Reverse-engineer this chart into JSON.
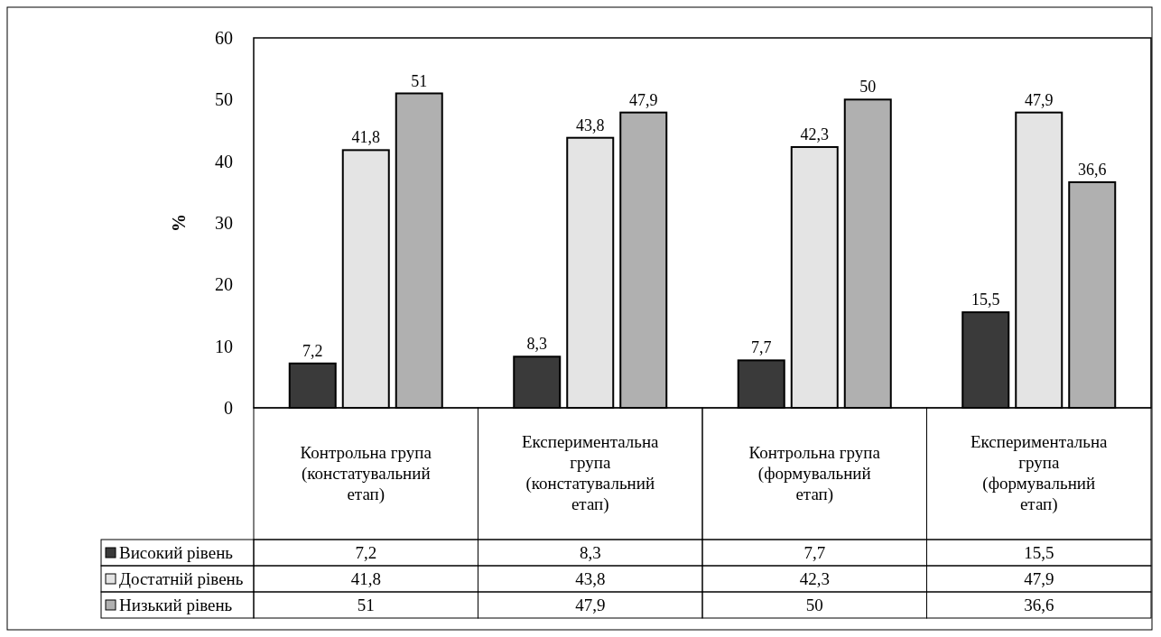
{
  "chart_data": {
    "type": "bar",
    "ylabel": "%",
    "categories": [
      "Контрольна група (констатувальний етап)",
      "Експериментальна група (констатувальний етап)",
      "Контрольна група (формувальний етап)",
      "Експериментальна група (формувальний етап)"
    ],
    "series": [
      {
        "name": "Високий рівень",
        "color": "#3a3a3a",
        "values": [
          7.2,
          8.3,
          7.7,
          15.5
        ],
        "value_labels": [
          "7,2",
          "8,3",
          "7,7",
          "15,5"
        ]
      },
      {
        "name": "Достатній рівень",
        "color": "#e4e4e4",
        "values": [
          41.8,
          43.8,
          42.3,
          47.9
        ],
        "value_labels": [
          "41,8",
          "43,8",
          "42,3",
          "47,9"
        ]
      },
      {
        "name": "Низький рівень",
        "color": "#b0b0b0",
        "values": [
          51,
          47.9,
          50,
          36.6
        ],
        "value_labels": [
          "51",
          "47,9",
          "50",
          "36,6"
        ]
      }
    ],
    "ylim": [
      0,
      60
    ],
    "yticks": [
      0,
      10,
      20,
      30,
      40,
      50,
      60
    ],
    "legend": "bottom"
  }
}
